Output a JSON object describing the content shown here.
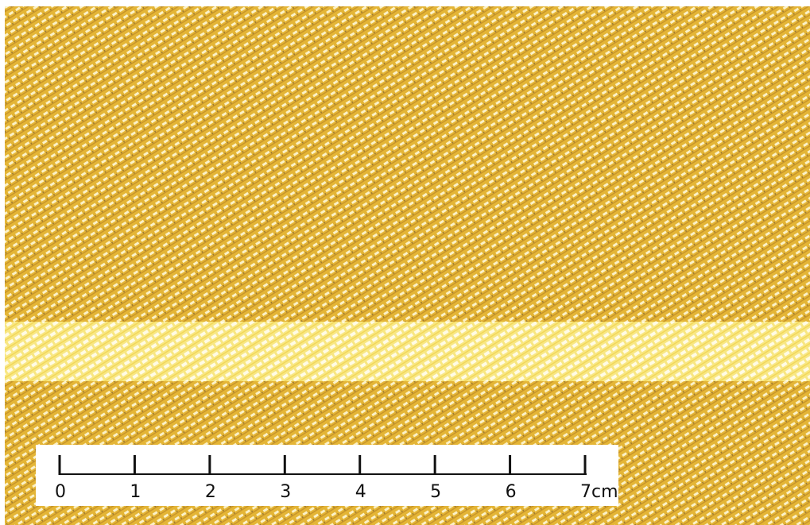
{
  "scale_bar": {
    "labels": [
      "0",
      "1",
      "2",
      "3",
      "4",
      "5",
      "6",
      "7cm"
    ]
  }
}
